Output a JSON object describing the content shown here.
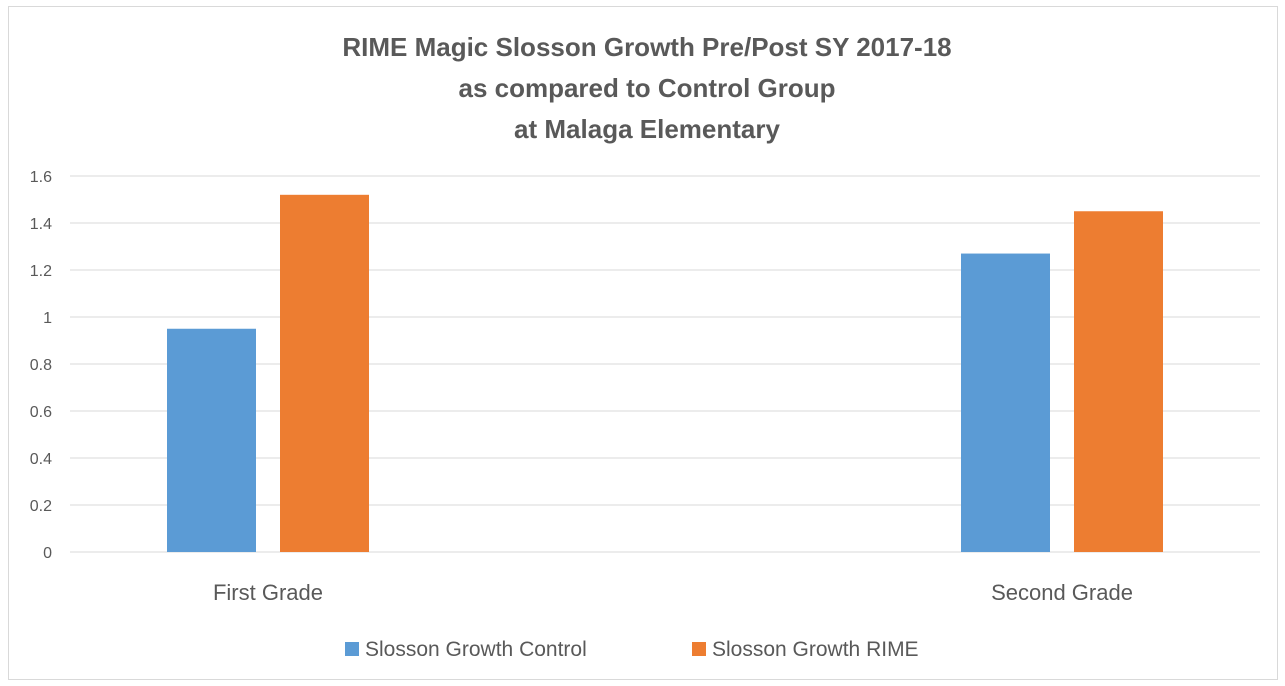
{
  "chart_data": {
    "type": "bar",
    "title_lines": [
      "RIME Magic Slosson Growth Pre/Post SY 2017-18",
      "as compared to Control Group",
      "at Malaga Elementary"
    ],
    "categories": [
      "First Grade",
      "Second Grade"
    ],
    "series": [
      {
        "name": "Slosson Growth Control",
        "values": [
          0.95,
          1.27
        ],
        "color": "#5b9bd5"
      },
      {
        "name": "Slosson Growth RIME",
        "values": [
          1.52,
          1.45
        ],
        "color": "#ed7d31"
      }
    ],
    "ylim": [
      0,
      1.6
    ],
    "yticks": [
      "0",
      "0.2",
      "0.4",
      "0.6",
      "0.8",
      "1",
      "1.2",
      "1.4",
      "1.6"
    ],
    "grid": true,
    "legend_position": "bottom"
  }
}
